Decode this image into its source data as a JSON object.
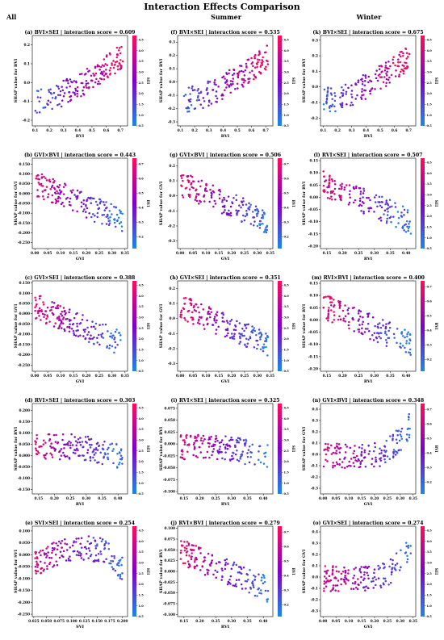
{
  "figure": {
    "title": "Interaction Effects Comparison",
    "column_titles": [
      "All",
      "Summer",
      "Winter"
    ]
  },
  "colors": {
    "low": "#1e88e5",
    "high": "#ff0d57"
  },
  "chart_data": [
    {
      "id": "a",
      "type": "scatter",
      "title": "(a) BVI×SEI | interaction score = 0.609",
      "xlabel": "BVI",
      "ylabel": "SHAP value for BVI",
      "colorbar_label": "SEI",
      "xlim": [
        0.08,
        0.75
      ],
      "ylim": [
        -0.23,
        0.25
      ],
      "xticks": [
        0.1,
        0.2,
        0.3,
        0.4,
        0.5,
        0.6,
        0.7
      ],
      "yticks": [
        -0.2,
        -0.1,
        0.0,
        0.1,
        0.2
      ],
      "cticks": [
        0.5,
        1.0,
        1.5,
        2.0,
        2.5,
        3.0,
        3.5,
        4.0,
        4.5
      ],
      "clim": [
        0.5,
        4.7
      ],
      "pattern": "rise",
      "n": 170,
      "seed": 1
    },
    {
      "id": "f",
      "type": "scatter",
      "title": "(f) BVI×SEI | interaction score = 0.535",
      "xlabel": "BVI",
      "ylabel": "SHAP value for BVI",
      "colorbar_label": "SEI",
      "xlim": [
        0.08,
        0.75
      ],
      "ylim": [
        -0.33,
        0.35
      ],
      "xticks": [
        0.1,
        0.2,
        0.3,
        0.4,
        0.5,
        0.6,
        0.7
      ],
      "yticks": [
        -0.3,
        -0.2,
        -0.1,
        0.0,
        0.1,
        0.2,
        0.3
      ],
      "cticks": [
        0.5,
        1.0,
        1.5,
        2.0,
        2.5,
        3.0,
        3.5,
        4.0,
        4.5
      ],
      "clim": [
        0.5,
        4.7
      ],
      "pattern": "rise",
      "n": 170,
      "seed": 2
    },
    {
      "id": "k",
      "type": "scatter",
      "title": "(k) BVI×SEI | interaction score = 0.675",
      "xlabel": "BVI",
      "ylabel": "SHAP value for BVI",
      "colorbar_label": "SEI",
      "xlim": [
        0.08,
        0.75
      ],
      "ylim": [
        -0.25,
        0.33
      ],
      "xticks": [
        0.1,
        0.2,
        0.3,
        0.4,
        0.5,
        0.6,
        0.7
      ],
      "yticks": [
        -0.2,
        -0.1,
        0.0,
        0.1,
        0.2,
        0.3
      ],
      "cticks": [
        0.5,
        1.0,
        1.5,
        2.0,
        2.5,
        3.0,
        3.5,
        4.0,
        4.5
      ],
      "clim": [
        0.5,
        4.7
      ],
      "pattern": "rise",
      "n": 170,
      "seed": 3
    },
    {
      "id": "b",
      "type": "scatter",
      "title": "(b) GVI×BVI | interaction score = 0.443",
      "xlabel": "GVI",
      "ylabel": "SHAP value for GVI",
      "colorbar_label": "BVI",
      "xlim": [
        -0.01,
        0.36
      ],
      "ylim": [
        -0.28,
        0.18
      ],
      "xticks": [
        0.0,
        0.05,
        0.1,
        0.15,
        0.2,
        0.25,
        0.3,
        0.35
      ],
      "yticks": [
        -0.25,
        -0.2,
        -0.15,
        -0.1,
        -0.05,
        0.0,
        0.05,
        0.1,
        0.15
      ],
      "cticks": [
        0.2,
        0.3,
        0.4,
        0.5,
        0.6,
        0.7
      ],
      "clim": [
        0.12,
        0.74
      ],
      "pattern": "fall",
      "n": 170,
      "seed": 4
    },
    {
      "id": "g",
      "type": "scatter",
      "title": "(g) GVI×BVI | interaction score = 0.506",
      "xlabel": "GVI",
      "ylabel": "SHAP value for GVI",
      "colorbar_label": "BVI",
      "xlim": [
        -0.01,
        0.36
      ],
      "ylim": [
        -0.35,
        0.25
      ],
      "xticks": [
        0.0,
        0.05,
        0.1,
        0.15,
        0.2,
        0.25,
        0.3,
        0.35
      ],
      "yticks": [
        -0.3,
        -0.2,
        -0.1,
        0.0,
        0.1,
        0.2
      ],
      "cticks": [
        0.2,
        0.3,
        0.4,
        0.5,
        0.6,
        0.7
      ],
      "clim": [
        0.12,
        0.74
      ],
      "pattern": "fall",
      "n": 170,
      "seed": 5
    },
    {
      "id": "l",
      "type": "scatter",
      "title": "(l) RVI×SEI | interaction score = 0.507",
      "xlabel": "RVI",
      "ylabel": "SHAP value for RVI",
      "colorbar_label": "SEI",
      "xlim": [
        0.13,
        0.43
      ],
      "ylim": [
        -0.21,
        0.16
      ],
      "xticks": [
        0.15,
        0.2,
        0.25,
        0.3,
        0.35,
        0.4
      ],
      "yticks": [
        -0.2,
        -0.15,
        -0.1,
        -0.05,
        0.0,
        0.05,
        0.1,
        0.15
      ],
      "cticks": [
        0.5,
        1.0,
        1.5,
        2.0,
        2.5,
        3.0,
        3.5,
        4.0,
        4.5
      ],
      "clim": [
        0.5,
        4.7
      ],
      "pattern": "fall",
      "n": 160,
      "seed": 6
    },
    {
      "id": "c",
      "type": "scatter",
      "title": "(c) GVI×SEI | interaction score = 0.388",
      "xlabel": "GVI",
      "ylabel": "SHAP value for GVI",
      "colorbar_label": "SEI",
      "xlim": [
        -0.01,
        0.36
      ],
      "ylim": [
        -0.28,
        0.16
      ],
      "xticks": [
        0.0,
        0.05,
        0.1,
        0.15,
        0.2,
        0.25,
        0.3,
        0.35
      ],
      "yticks": [
        -0.25,
        -0.2,
        -0.15,
        -0.1,
        -0.05,
        0.0,
        0.05,
        0.1,
        0.15
      ],
      "cticks": [
        0.5,
        1.0,
        1.5,
        2.0,
        2.5,
        3.0,
        3.5,
        4.0,
        4.5
      ],
      "clim": [
        0.5,
        4.7
      ],
      "pattern": "fall",
      "n": 170,
      "seed": 7
    },
    {
      "id": "h",
      "type": "scatter",
      "title": "(h) GVI×SEI | interaction score = 0.351",
      "xlabel": "GVI",
      "ylabel": "SHAP value for GVI",
      "colorbar_label": "SEI",
      "xlim": [
        -0.01,
        0.36
      ],
      "ylim": [
        -0.35,
        0.25
      ],
      "xticks": [
        0.0,
        0.05,
        0.1,
        0.15,
        0.2,
        0.25,
        0.3,
        0.35
      ],
      "yticks": [
        -0.3,
        -0.2,
        -0.1,
        0.0,
        0.1,
        0.2
      ],
      "cticks": [
        0.5,
        1.0,
        1.5,
        2.0,
        2.5,
        3.0,
        3.5,
        4.0,
        4.5
      ],
      "clim": [
        0.5,
        4.7
      ],
      "pattern": "fall",
      "n": 170,
      "seed": 8
    },
    {
      "id": "m",
      "type": "scatter",
      "title": "(m) RVI×BVI | interaction score = 0.400",
      "xlabel": "RVI",
      "ylabel": "SHAP value for RVI",
      "colorbar_label": "BVI",
      "xlim": [
        0.13,
        0.43
      ],
      "ylim": [
        -0.21,
        0.16
      ],
      "xticks": [
        0.15,
        0.2,
        0.25,
        0.3,
        0.35,
        0.4
      ],
      "yticks": [
        -0.2,
        -0.15,
        -0.1,
        -0.05,
        0.0,
        0.05,
        0.1,
        0.15
      ],
      "cticks": [
        0.2,
        0.3,
        0.4,
        0.5,
        0.6,
        0.7
      ],
      "clim": [
        0.12,
        0.74
      ],
      "pattern": "fall",
      "n": 160,
      "seed": 9
    },
    {
      "id": "d",
      "type": "scatter",
      "title": "(d) RVI×SEI | interaction score = 0.303",
      "xlabel": "RVI",
      "ylabel": "SHAP value for RVI",
      "colorbar_label": "SEI",
      "xlim": [
        0.13,
        0.43
      ],
      "ylim": [
        -0.17,
        0.23
      ],
      "xticks": [
        0.15,
        0.2,
        0.25,
        0.3,
        0.35,
        0.4
      ],
      "yticks": [
        -0.15,
        -0.1,
        -0.05,
        0.0,
        0.05,
        0.1,
        0.15,
        0.2
      ],
      "cticks": [
        0.5,
        1.0,
        1.5,
        2.0,
        2.5,
        3.0,
        3.5,
        4.0,
        4.5
      ],
      "clim": [
        0.5,
        4.7
      ],
      "pattern": "flatfall",
      "n": 160,
      "seed": 10
    },
    {
      "id": "i",
      "type": "scatter",
      "title": "(i) RVI×SEI | interaction score = 0.325",
      "xlabel": "RVI",
      "ylabel": "SHAP value for RVI",
      "colorbar_label": "SEI",
      "xlim": [
        0.13,
        0.43
      ],
      "ylim": [
        -0.105,
        0.085
      ],
      "xticks": [
        0.15,
        0.2,
        0.25,
        0.3,
        0.35,
        0.4
      ],
      "yticks": [
        -0.1,
        -0.075,
        -0.05,
        -0.025,
        0.0,
        0.025,
        0.05,
        0.075
      ],
      "cticks": [
        0.5,
        1.0,
        1.5,
        2.0,
        2.5,
        3.0,
        3.5,
        4.0,
        4.5
      ],
      "clim": [
        0.5,
        4.7
      ],
      "pattern": "flatfall",
      "n": 160,
      "seed": 11
    },
    {
      "id": "n",
      "type": "scatter",
      "title": "(n) GVI×BVI | interaction score = 0.348",
      "xlabel": "GVI",
      "ylabel": "SHAP value for GVI",
      "colorbar_label": "BVI",
      "xlim": [
        -0.01,
        0.36
      ],
      "ylim": [
        -0.35,
        0.45
      ],
      "xticks": [
        0.0,
        0.05,
        0.1,
        0.15,
        0.2,
        0.25,
        0.3,
        0.35
      ],
      "yticks": [
        -0.3,
        -0.2,
        -0.1,
        0.0,
        0.1,
        0.2,
        0.3,
        0.4
      ],
      "cticks": [
        0.2,
        0.3,
        0.4,
        0.5,
        0.6,
        0.7
      ],
      "clim": [
        0.12,
        0.74
      ],
      "pattern": "ushape",
      "n": 160,
      "seed": 12
    },
    {
      "id": "e",
      "type": "scatter",
      "title": "(e) SVI×SEI | interaction score = 0.254",
      "xlabel": "SVI",
      "ylabel": "SHAP value for SVI",
      "colorbar_label": "SEI",
      "xlim": [
        0.022,
        0.21
      ],
      "ylim": [
        -0.26,
        0.12
      ],
      "xticks": [
        0.025,
        0.05,
        0.075,
        0.1,
        0.125,
        0.15,
        0.175,
        0.2
      ],
      "yticks": [
        -0.25,
        -0.2,
        -0.15,
        -0.1,
        -0.05,
        0.0,
        0.05,
        0.1
      ],
      "cticks": [
        0.5,
        1.0,
        1.5,
        2.0,
        2.5,
        3.0,
        3.5,
        4.0,
        4.5
      ],
      "clim": [
        0.5,
        4.7
      ],
      "pattern": "hump",
      "n": 170,
      "seed": 13
    },
    {
      "id": "j",
      "type": "scatter",
      "title": "(j) RVI×BVI | interaction score = 0.279",
      "xlabel": "RVI",
      "ylabel": "SHAP value for RVI",
      "colorbar_label": "BVI",
      "xlim": [
        0.13,
        0.43
      ],
      "ylim": [
        -0.105,
        0.105
      ],
      "xticks": [
        0.15,
        0.2,
        0.25,
        0.3,
        0.35,
        0.4
      ],
      "yticks": [
        -0.1,
        -0.075,
        -0.05,
        -0.025,
        0.0,
        0.025,
        0.05,
        0.075,
        0.1
      ],
      "cticks": [
        0.2,
        0.3,
        0.4,
        0.5,
        0.6,
        0.7
      ],
      "clim": [
        0.12,
        0.74
      ],
      "pattern": "fall",
      "n": 160,
      "seed": 14
    },
    {
      "id": "o",
      "type": "scatter",
      "title": "(o) GVI×SEI | interaction score = 0.274",
      "xlabel": "GVI",
      "ylabel": "SHAP value for GVI",
      "colorbar_label": "SEI",
      "xlim": [
        -0.01,
        0.36
      ],
      "ylim": [
        -0.35,
        0.45
      ],
      "xticks": [
        0.0,
        0.05,
        0.1,
        0.15,
        0.2,
        0.25,
        0.3,
        0.35
      ],
      "yticks": [
        -0.3,
        -0.2,
        -0.1,
        0.0,
        0.1,
        0.2,
        0.3,
        0.4
      ],
      "cticks": [
        0.5,
        1.0,
        1.5,
        2.0,
        2.5,
        3.0,
        3.5,
        4.0,
        4.5
      ],
      "clim": [
        0.5,
        4.7
      ],
      "pattern": "ushape",
      "n": 160,
      "seed": 15
    }
  ]
}
